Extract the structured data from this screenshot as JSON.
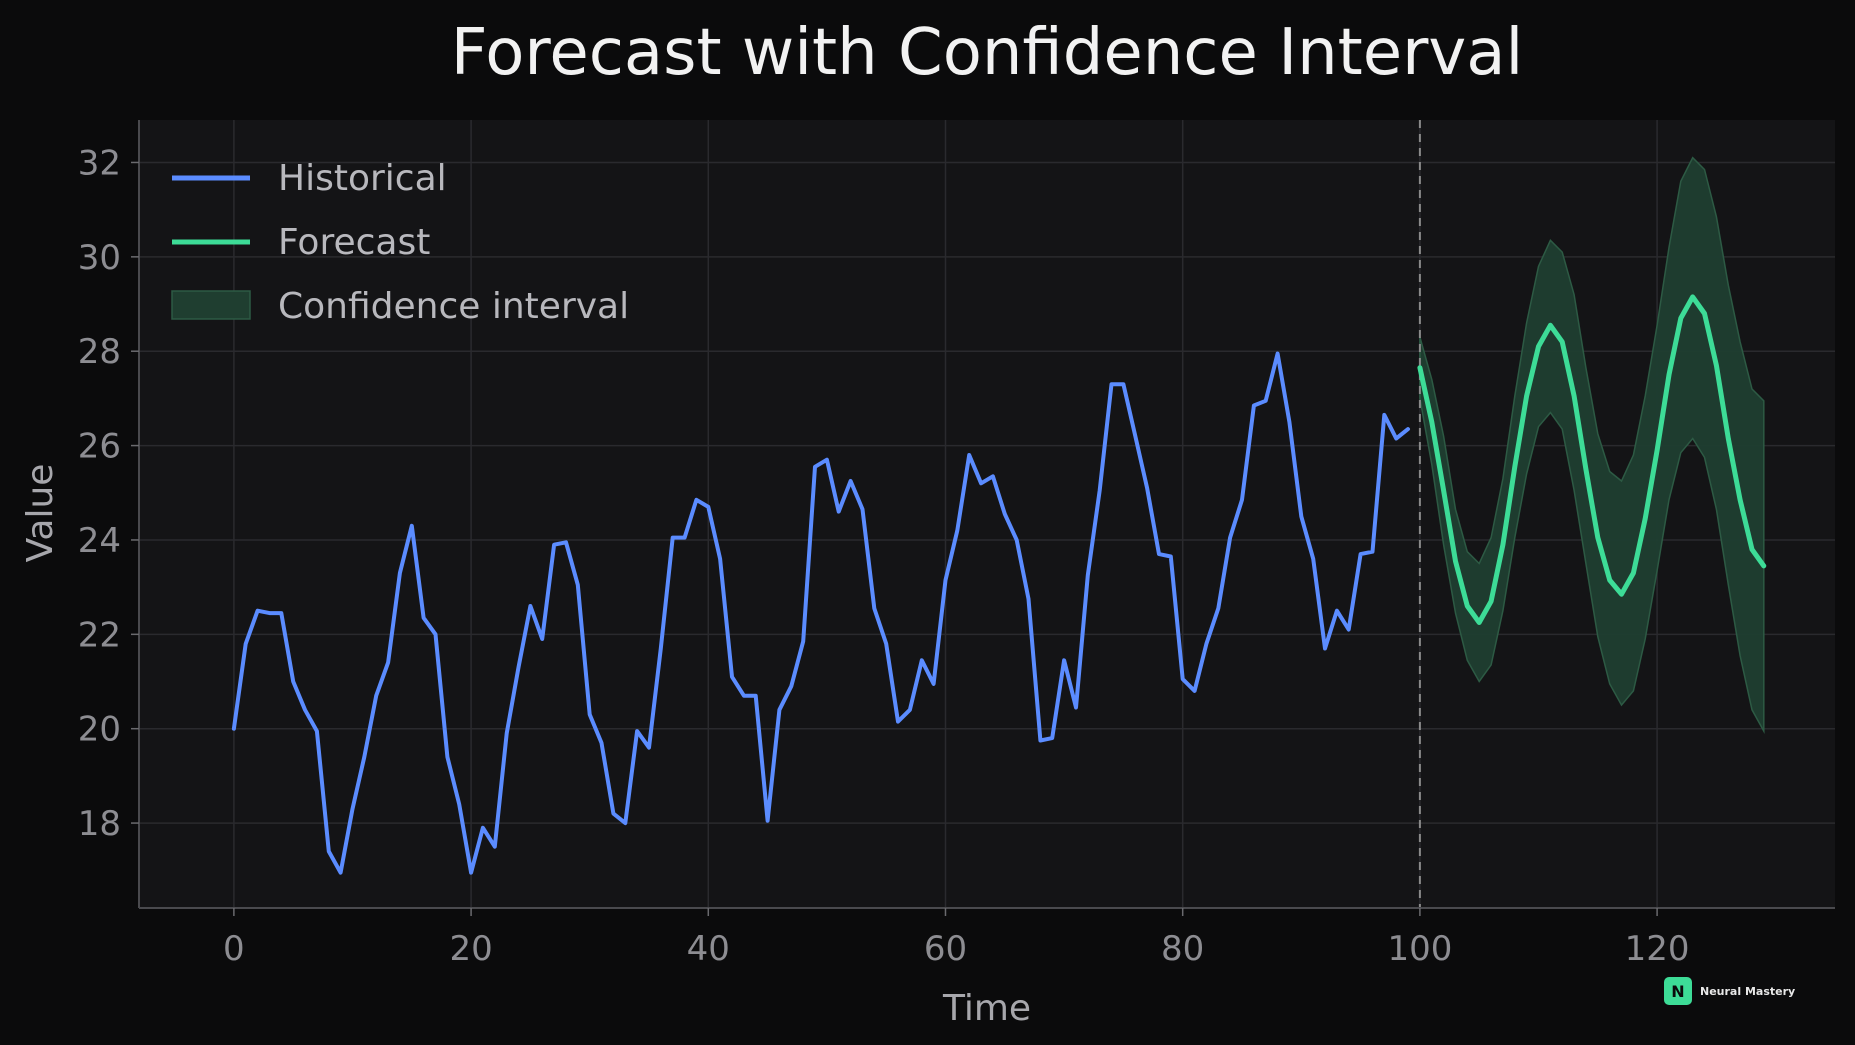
{
  "chart_data": {
    "type": "line",
    "title": "Forecast with Confidence Interval",
    "xlabel": "Time",
    "ylabel": "Value",
    "xlim": [
      -8,
      135
    ],
    "ylim": [
      16.2,
      32.9
    ],
    "xticks": [
      0,
      20,
      40,
      60,
      80,
      100,
      120
    ],
    "yticks": [
      18,
      20,
      22,
      24,
      26,
      28,
      30,
      32
    ],
    "grid": true,
    "legend_position": "top-left",
    "forecast_start_marker": 100,
    "colors": {
      "historical": "#5b8cff",
      "forecast": "#3ddc97",
      "confidence_fill": "#1f3e30",
      "background": "#0b0b0c",
      "plot_background": "#141416",
      "grid": "#2a2a2e",
      "marker_line": "#8a8a8a"
    },
    "series": [
      {
        "name": "Historical",
        "x": [
          0,
          1,
          2,
          3,
          4,
          5,
          6,
          7,
          8,
          9,
          10,
          11,
          12,
          13,
          14,
          15,
          16,
          17,
          18,
          19,
          20,
          21,
          22,
          23,
          24,
          25,
          26,
          27,
          28,
          29,
          30,
          31,
          32,
          33,
          34,
          35,
          36,
          37,
          38,
          39,
          40,
          41,
          42,
          43,
          44,
          45,
          46,
          47,
          48,
          49,
          50,
          51,
          52,
          53,
          54,
          55,
          56,
          57,
          58,
          59,
          60,
          61,
          62,
          63,
          64,
          65,
          66,
          67,
          68,
          69,
          70,
          71,
          72,
          73,
          74,
          75,
          76,
          77,
          78,
          79,
          80,
          81,
          82,
          83,
          84,
          85,
          86,
          87,
          88,
          89,
          90,
          91,
          92,
          93,
          94,
          95,
          96,
          97,
          98,
          99
        ],
        "y": [
          20.0,
          21.8,
          22.5,
          22.45,
          22.45,
          21.0,
          20.4,
          19.95,
          17.4,
          16.95,
          18.3,
          19.4,
          20.7,
          21.4,
          23.3,
          24.3,
          22.35,
          22.0,
          19.4,
          18.4,
          16.95,
          17.9,
          17.5,
          19.9,
          21.3,
          22.6,
          21.9,
          23.9,
          23.95,
          23.05,
          20.3,
          19.7,
          18.2,
          18.0,
          19.95,
          19.6,
          21.7,
          24.05,
          24.05,
          24.85,
          24.7,
          23.6,
          21.1,
          20.7,
          20.7,
          18.05,
          20.4,
          20.9,
          21.85,
          25.55,
          25.7,
          24.6,
          25.25,
          24.65,
          22.55,
          21.8,
          20.15,
          20.4,
          21.45,
          20.95,
          23.15,
          24.2,
          25.8,
          25.2,
          25.35,
          24.55,
          24.0,
          22.75,
          19.75,
          19.8,
          21.45,
          20.45,
          23.25,
          25.05,
          27.3,
          27.3,
          26.2,
          25.1,
          23.7,
          23.65,
          21.05,
          20.8,
          21.8,
          22.55,
          24.05,
          24.85,
          26.85,
          26.95,
          27.95,
          26.5,
          24.5,
          23.6,
          21.7,
          22.5,
          22.1,
          23.7,
          23.75,
          26.65,
          26.15,
          26.35
        ]
      },
      {
        "name": "Forecast",
        "x": [
          100,
          101,
          102,
          103,
          104,
          105,
          106,
          107,
          108,
          109,
          110,
          111,
          112,
          113,
          114,
          115,
          116,
          117,
          118,
          119,
          120,
          121,
          122,
          123,
          124,
          125,
          126,
          127,
          128,
          129
        ],
        "y": [
          27.65,
          26.5,
          25.05,
          23.55,
          22.6,
          22.25,
          22.7,
          23.9,
          25.55,
          27.05,
          28.1,
          28.55,
          28.2,
          27.05,
          25.5,
          24.05,
          23.15,
          22.85,
          23.3,
          24.45,
          25.9,
          27.5,
          28.7,
          29.15,
          28.8,
          27.7,
          26.15,
          24.85,
          23.8,
          23.45
        ]
      },
      {
        "name": "Confidence interval",
        "x": [
          100,
          101,
          102,
          103,
          104,
          105,
          106,
          107,
          108,
          109,
          110,
          111,
          112,
          113,
          114,
          115,
          116,
          117,
          118,
          119,
          120,
          121,
          122,
          123,
          124,
          125,
          126,
          127,
          128,
          129
        ],
        "lower": [
          27.0,
          25.6,
          23.9,
          22.45,
          21.45,
          21.0,
          21.35,
          22.5,
          24.05,
          25.4,
          26.4,
          26.7,
          26.35,
          25.05,
          23.5,
          21.95,
          20.95,
          20.5,
          20.8,
          21.9,
          23.35,
          24.85,
          25.85,
          26.15,
          25.75,
          24.65,
          23.05,
          21.55,
          20.4,
          19.95
        ],
        "upper": [
          28.3,
          27.4,
          26.2,
          24.65,
          23.75,
          23.5,
          24.05,
          25.3,
          27.05,
          28.6,
          29.8,
          30.35,
          30.1,
          29.2,
          27.65,
          26.25,
          25.45,
          25.25,
          25.8,
          27.05,
          28.55,
          30.2,
          31.6,
          32.1,
          31.85,
          30.85,
          29.4,
          28.2,
          27.2,
          26.95
        ]
      }
    ]
  },
  "branding": {
    "badge_letter": "N",
    "name": "Neural Mastery"
  }
}
